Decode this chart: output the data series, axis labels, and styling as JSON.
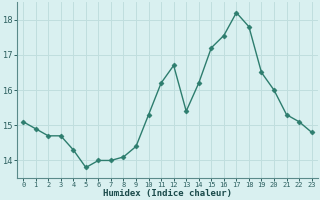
{
  "x": [
    0,
    1,
    2,
    3,
    4,
    5,
    6,
    7,
    8,
    9,
    10,
    11,
    12,
    13,
    14,
    15,
    16,
    17,
    18,
    19,
    20,
    21,
    22,
    23
  ],
  "y": [
    15.1,
    14.9,
    14.7,
    14.7,
    14.3,
    13.8,
    14.0,
    14.0,
    14.1,
    14.4,
    15.3,
    16.2,
    16.7,
    15.4,
    16.2,
    17.2,
    17.55,
    18.2,
    17.8,
    16.5,
    16.0,
    15.3,
    15.1,
    14.8
  ],
  "line_color": "#2d7d6e",
  "marker": "D",
  "marker_size": 2.5,
  "bg_color": "#d9f0f0",
  "grid_color": "#c0dede",
  "xlabel": "Humidex (Indice chaleur)",
  "xlim": [
    -0.5,
    23.5
  ],
  "ylim": [
    13.5,
    18.5
  ],
  "yticks": [
    14,
    15,
    16,
    17,
    18
  ],
  "xticks": [
    0,
    1,
    2,
    3,
    4,
    5,
    6,
    7,
    8,
    9,
    10,
    11,
    12,
    13,
    14,
    15,
    16,
    17,
    18,
    19,
    20,
    21,
    22,
    23
  ],
  "xtick_labels": [
    "0",
    "1",
    "2",
    "3",
    "4",
    "5",
    "6",
    "7",
    "8",
    "9",
    "10",
    "11",
    "12",
    "13",
    "14",
    "15",
    "16",
    "17",
    "18",
    "19",
    "20",
    "21",
    "22",
    "23"
  ],
  "spine_color": "#5a8a8a",
  "tick_color": "#2d6060"
}
